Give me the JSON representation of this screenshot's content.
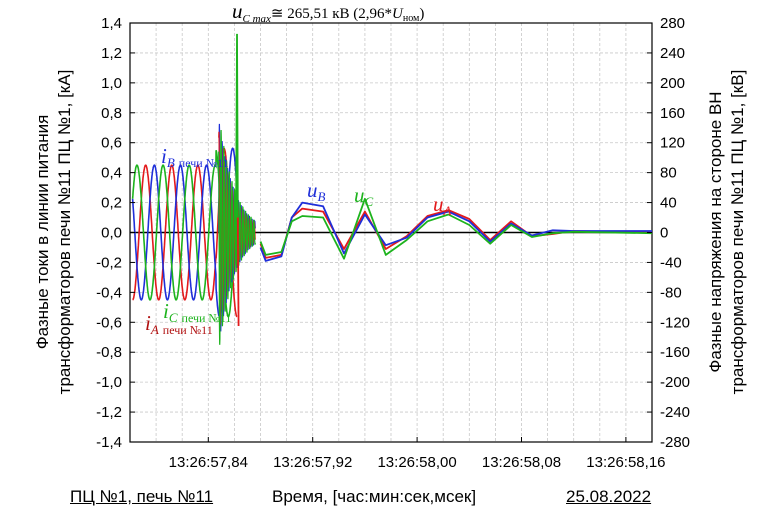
{
  "chart_data": {
    "type": "line",
    "grid": true,
    "xlabel": "Время, [час:мин:сек,мсек]",
    "ylabel_left_lines": [
      "Фазные токи в линии питания",
      "трансформаторов печи №11 ПЦ №1, [кА]"
    ],
    "ylabel_right_lines": [
      "Фазные напряжения на стороне ВН",
      "трансформаторов печи №11 ПЦ №1, [кВ]"
    ],
    "x_tick_labels": [
      "13:26:57,84",
      "13:26:57,92",
      "13:26:58,00",
      "13:26:58,08",
      "13:26:58,16"
    ],
    "y_left_ticks": [
      "1,4",
      "1,2",
      "1,0",
      "0,8",
      "0,6",
      "0,4",
      "0,2",
      "0,0",
      "-0,2",
      "-0,4",
      "-0,6",
      "-0,8",
      "-1,0",
      "-1,2",
      "-1,4"
    ],
    "y_right_ticks": [
      "280",
      "240",
      "200",
      "160",
      "120",
      "80",
      "40",
      "0",
      "-40",
      "-80",
      "-120",
      "-160",
      "-200",
      "-240",
      "-280"
    ],
    "ylim_left": [
      -1.4,
      1.4
    ],
    "ylim_right": [
      -280,
      280
    ],
    "xlim_s": [
      57.78,
      58.18
    ],
    "series": [
      {
        "label": "iA печи №11",
        "axis": "left",
        "color": "#e31a1c",
        "x": [
          57.782,
          57.798,
          57.815,
          57.832,
          57.84
        ],
        "amplitude": 0.45,
        "phase_deg": -90
      },
      {
        "label": "iB печи №11",
        "axis": "left",
        "color": "#1f2fd9",
        "x": [
          57.782,
          57.798,
          57.815,
          57.832,
          57.84
        ],
        "amplitude": 0.45,
        "phase_deg": 150
      },
      {
        "label": "iC печи №11",
        "axis": "left",
        "color": "#1db31d",
        "x": [
          57.782,
          57.798,
          57.815,
          57.832,
          57.84
        ],
        "amplitude": 0.45,
        "phase_deg": 30
      },
      {
        "label": "uA",
        "axis": "right",
        "color": "#e31a1c",
        "x": [
          57.88,
          57.884,
          57.896,
          57.904,
          57.912,
          57.928,
          57.944,
          57.96,
          57.976,
          57.992,
          58.008,
          58.024,
          58.04,
          58.056,
          58.072,
          58.088,
          58.104,
          58.12,
          58.18
        ],
        "y": [
          -15,
          -34,
          -30,
          20,
          32,
          28,
          -22,
          28,
          -22,
          -5,
          22,
          30,
          18,
          -10,
          15,
          -5,
          -2,
          2,
          0
        ]
      },
      {
        "label": "uB",
        "axis": "right",
        "color": "#1f2fd9",
        "x": [
          57.88,
          57.884,
          57.896,
          57.904,
          57.912,
          57.928,
          57.944,
          57.96,
          57.976,
          57.992,
          58.008,
          58.024,
          58.04,
          58.056,
          58.072,
          58.088,
          58.104,
          58.12,
          58.18
        ],
        "y": [
          -20,
          -38,
          -32,
          20,
          40,
          35,
          -28,
          24,
          -17,
          -7,
          20,
          28,
          15,
          -12,
          12,
          -4,
          3,
          2,
          2
        ]
      },
      {
        "label": "uC",
        "axis": "right",
        "color": "#1db31d",
        "x": [
          57.88,
          57.884,
          57.896,
          57.904,
          57.912,
          57.928,
          57.944,
          57.96,
          57.976,
          57.992,
          58.008,
          58.024,
          58.04,
          58.056,
          58.072,
          58.088,
          58.104,
          58.12,
          58.18
        ],
        "y": [
          -12,
          -30,
          -26,
          15,
          22,
          20,
          -35,
          45,
          -30,
          -10,
          15,
          24,
          10,
          -15,
          10,
          -6,
          -1,
          1,
          -1
        ]
      }
    ],
    "peak_annotation": {
      "series": "uC",
      "x": 57.862,
      "y": 265.51
    }
  },
  "annotations": {
    "peak_main": "u",
    "peak_sub": "C max",
    "peak_rest": "≅ 265,51 кВ (2,96*",
    "peak_u": "U",
    "peak_u_sub": "ном",
    "peak_close": ")",
    "iB_sym": "i",
    "iB_sub": "B",
    "iB_suffix": "печи №11",
    "iC_sym": "i",
    "iC_sub": "C",
    "iC_suffix": "печи №11",
    "iA_sym": "i",
    "iA_sub": "A",
    "iA_suffix": "печи №11",
    "uB_sym": "u",
    "uB_sub": "B",
    "uC_sym": "u",
    "uC_sub": "C",
    "uA_sym": "u",
    "uA_sub": "A"
  },
  "footer": {
    "left": "ПЦ №1, печь №11",
    "center": "Время, [час:мин:сек,мсек]",
    "right": "25.08.2022"
  },
  "colors": {
    "red": "#e31a1c",
    "blue": "#1f2fd9",
    "green": "#1db31d"
  }
}
